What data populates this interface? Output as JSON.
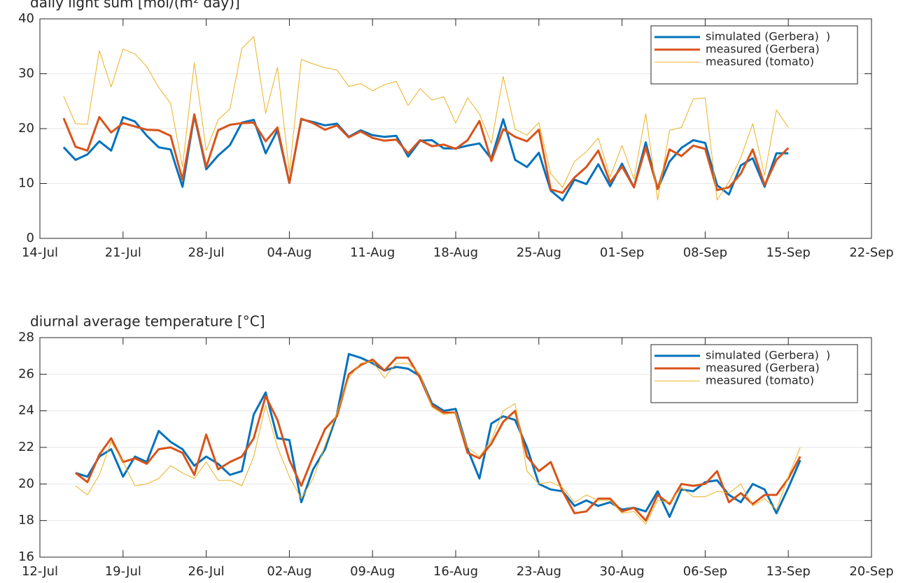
{
  "chart_data": [
    {
      "type": "line",
      "title": "daily light sum [mol/(m² day)]",
      "x": [
        "16-Jul",
        "17-Jul",
        "18-Jul",
        "19-Jul",
        "20-Jul",
        "21-Jul",
        "22-Jul",
        "23-Jul",
        "24-Jul",
        "25-Jul",
        "26-Jul",
        "27-Jul",
        "28-Jul",
        "29-Jul",
        "30-Jul",
        "31-Jul",
        "01-Aug",
        "02-Aug",
        "03-Aug",
        "04-Aug",
        "05-Aug",
        "06-Aug",
        "07-Aug",
        "08-Aug",
        "09-Aug",
        "10-Aug",
        "11-Aug",
        "12-Aug",
        "13-Aug",
        "14-Aug",
        "15-Aug",
        "16-Aug",
        "17-Aug",
        "18-Aug",
        "19-Aug",
        "20-Aug",
        "21-Aug",
        "22-Aug",
        "23-Aug",
        "24-Aug",
        "25-Aug",
        "26-Aug",
        "27-Aug",
        "28-Aug",
        "29-Aug",
        "30-Aug",
        "31-Aug",
        "01-Sep",
        "02-Sep",
        "03-Sep",
        "04-Sep",
        "05-Sep",
        "06-Sep",
        "07-Sep",
        "08-Sep",
        "09-Sep",
        "10-Sep",
        "11-Sep",
        "12-Sep",
        "13-Sep",
        "14-Sep",
        "15-Sep"
      ],
      "series": [
        {
          "name": "simulated (Gerbera)  )",
          "color": "#0072bd",
          "width": 3,
          "values": [
            16.6,
            14.3,
            15.3,
            17.7,
            16.0,
            22.1,
            21.3,
            18.7,
            16.6,
            16.2,
            9.4,
            22.4,
            12.6,
            15.1,
            17.0,
            21.1,
            21.6,
            15.5,
            19.7,
            10.1,
            21.7,
            21.2,
            20.6,
            20.9,
            18.5,
            19.7,
            18.8,
            18.5,
            18.7,
            14.9,
            17.8,
            17.9,
            16.4,
            16.4,
            16.9,
            17.3,
            14.5,
            21.7,
            14.3,
            13.0,
            15.6,
            8.7,
            6.9,
            10.7,
            9.9,
            13.5,
            9.5,
            13.6,
            9.3,
            17.5,
            9.0,
            14.0,
            16.5,
            17.9,
            17.4,
            9.7,
            8.0,
            13.3,
            14.6,
            9.4,
            15.5,
            15.5
          ]
        },
        {
          "name": "measured (Gerbera)",
          "color": "#d95319",
          "width": 3,
          "values": [
            21.9,
            16.7,
            16.0,
            22.1,
            19.3,
            21.0,
            20.4,
            19.8,
            19.7,
            18.7,
            10.7,
            22.6,
            13.0,
            19.7,
            20.7,
            21.0,
            21.1,
            17.7,
            20.2,
            10.1,
            21.8,
            21.0,
            19.8,
            20.6,
            18.4,
            19.5,
            18.3,
            17.8,
            18.0,
            15.5,
            17.9,
            16.8,
            17.1,
            16.3,
            17.9,
            21.4,
            14.1,
            19.9,
            18.5,
            17.7,
            19.8,
            8.9,
            8.3,
            11.1,
            13.0,
            16.0,
            10.2,
            13.1,
            9.3,
            16.6,
            9.0,
            16.2,
            15.0,
            16.9,
            16.3,
            8.8,
            9.3,
            11.8,
            16.2,
            9.7,
            14.3,
            16.5
          ]
        },
        {
          "name": "measured (tomato)",
          "color": "#edb120",
          "width": 1,
          "values": [
            25.9,
            20.9,
            20.8,
            34.2,
            27.6,
            34.5,
            33.6,
            31.3,
            27.5,
            24.6,
            13.0,
            32.0,
            16.0,
            21.6,
            23.6,
            34.6,
            36.8,
            22.8,
            31.2,
            12.0,
            32.6,
            31.8,
            31.1,
            30.7,
            27.7,
            28.2,
            26.9,
            28.0,
            28.6,
            24.2,
            27.3,
            25.2,
            25.8,
            21.0,
            25.6,
            22.7,
            17.3,
            29.5,
            19.9,
            18.8,
            21.1,
            11.8,
            9.3,
            14.0,
            15.8,
            18.3,
            11.2,
            16.9,
            10.8,
            22.7,
            7.0,
            19.7,
            20.2,
            25.4,
            25.6,
            7.0,
            10.3,
            14.7,
            20.9,
            11.5,
            23.4,
            20.2
          ]
        }
      ],
      "xlim": [
        "14-Jul",
        "22-Sep"
      ],
      "xticks": [
        "14-Jul",
        "21-Jul",
        "28-Jul",
        "04-Aug",
        "11-Aug",
        "18-Aug",
        "25-Aug",
        "01-Sep",
        "08-Sep",
        "15-Sep",
        "22-Sep"
      ],
      "ylim": [
        0,
        40
      ],
      "yticks": [
        0,
        10,
        20,
        30,
        40
      ],
      "grid": true,
      "legend": "upper right"
    },
    {
      "type": "line",
      "title": "diurnal average temperature [°C]",
      "x": [
        "15-Jul",
        "16-Jul",
        "17-Jul",
        "18-Jul",
        "19-Jul",
        "20-Jul",
        "21-Jul",
        "22-Jul",
        "23-Jul",
        "24-Jul",
        "25-Jul",
        "26-Jul",
        "27-Jul",
        "28-Jul",
        "29-Jul",
        "30-Jul",
        "31-Jul",
        "01-Aug",
        "02-Aug",
        "03-Aug",
        "04-Aug",
        "05-Aug",
        "06-Aug",
        "07-Aug",
        "08-Aug",
        "09-Aug",
        "10-Aug",
        "11-Aug",
        "12-Aug",
        "13-Aug",
        "14-Aug",
        "15-Aug",
        "16-Aug",
        "17-Aug",
        "18-Aug",
        "19-Aug",
        "20-Aug",
        "21-Aug",
        "22-Aug",
        "23-Aug",
        "24-Aug",
        "25-Aug",
        "26-Aug",
        "27-Aug",
        "28-Aug",
        "29-Aug",
        "30-Aug",
        "31-Aug",
        "01-Sep",
        "02-Sep",
        "03-Sep",
        "04-Sep",
        "05-Sep",
        "06-Sep",
        "07-Sep",
        "08-Sep",
        "09-Sep",
        "10-Sep",
        "11-Sep",
        "12-Sep",
        "13-Sep",
        "14-Sep"
      ],
      "series": [
        {
          "name": "simulated (Gerbera)  )",
          "color": "#0072bd",
          "width": 3,
          "values": [
            20.6,
            20.4,
            21.5,
            21.9,
            20.4,
            21.5,
            21.2,
            22.9,
            22.3,
            21.9,
            21.0,
            21.5,
            21.1,
            20.5,
            20.7,
            23.8,
            25.0,
            22.5,
            22.4,
            19.0,
            20.8,
            21.9,
            23.8,
            27.1,
            26.9,
            26.6,
            26.2,
            26.4,
            26.3,
            25.9,
            24.4,
            24.0,
            24.1,
            21.9,
            20.3,
            23.3,
            23.7,
            23.5,
            22.0,
            20.0,
            19.7,
            19.6,
            18.8,
            19.1,
            18.8,
            19.0,
            18.6,
            18.7,
            18.5,
            19.6,
            18.2,
            19.7,
            19.6,
            20.1,
            20.2,
            19.4,
            19.0,
            20.0,
            19.7,
            18.4,
            19.8,
            21.3
          ]
        },
        {
          "name": "measured (Gerbera)",
          "color": "#d95319",
          "width": 3,
          "values": [
            20.6,
            20.1,
            21.6,
            22.5,
            21.2,
            21.4,
            21.1,
            21.9,
            22.0,
            21.7,
            20.5,
            22.7,
            20.8,
            21.2,
            21.5,
            22.5,
            24.8,
            23.5,
            21.3,
            19.9,
            21.5,
            23.0,
            23.7,
            26.0,
            26.5,
            26.8,
            26.2,
            26.9,
            26.9,
            25.8,
            24.3,
            23.9,
            23.9,
            21.7,
            21.4,
            22.2,
            23.4,
            24.0,
            21.5,
            20.7,
            21.2,
            19.6,
            18.4,
            18.5,
            19.2,
            19.2,
            18.5,
            18.7,
            18.0,
            19.4,
            18.9,
            20.0,
            19.9,
            20.0,
            20.7,
            19.0,
            19.5,
            18.9,
            19.4,
            19.4,
            20.3,
            21.5
          ]
        },
        {
          "name": "measured (tomato)",
          "color": "#edb120",
          "width": 1,
          "values": [
            19.9,
            19.4,
            20.5,
            22.3,
            21.2,
            19.9,
            20.0,
            20.3,
            21.0,
            20.6,
            20.3,
            21.2,
            20.2,
            20.2,
            19.9,
            21.5,
            24.3,
            22.0,
            20.4,
            19.2,
            20.3,
            22.1,
            23.9,
            25.8,
            26.6,
            26.7,
            25.8,
            26.6,
            26.6,
            26.0,
            24.2,
            23.8,
            23.9,
            22.0,
            21.5,
            22.4,
            24.0,
            24.4,
            20.7,
            20.0,
            20.1,
            19.8,
            19.0,
            19.4,
            19.1,
            19.1,
            18.4,
            18.5,
            17.8,
            19.1,
            19.0,
            19.8,
            19.3,
            19.3,
            19.6,
            19.5,
            20.0,
            18.8,
            19.2,
            18.6,
            20.4,
            22.0
          ]
        }
      ],
      "xlim": [
        "12-Jul",
        "20-Sep"
      ],
      "xticks": [
        "12-Jul",
        "19-Jul",
        "26-Jul",
        "02-Aug",
        "09-Aug",
        "16-Aug",
        "23-Aug",
        "30-Aug",
        "06-Sep",
        "13-Sep",
        "20-Sep"
      ],
      "ylim": [
        16,
        28
      ],
      "yticks": [
        16,
        18,
        20,
        22,
        24,
        26,
        28
      ],
      "grid": true,
      "legend": "upper right"
    }
  ]
}
